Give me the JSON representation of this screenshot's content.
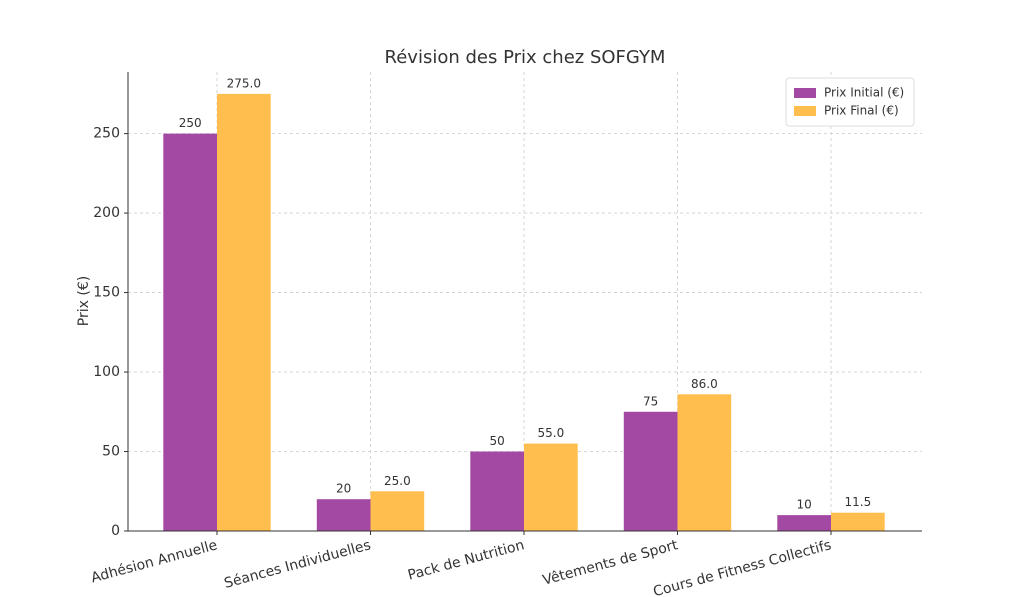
{
  "chart_data": {
    "type": "bar",
    "title": "Révision des Prix chez SOFGYM",
    "y_label": "Prix (€)",
    "categories": [
      "Adhésion Annuelle",
      "Séances Individuelles",
      "Pack de Nutrition",
      "Vêtements de Sport",
      "Cours de Fitness Collectifs"
    ],
    "series": [
      {
        "name": "Prix Initial (€)",
        "color": "#a349a4",
        "values": [
          250,
          20,
          50,
          75,
          10
        ]
      },
      {
        "name": "Prix Final (€)",
        "color": "#ffbe4d",
        "values": [
          275,
          25,
          55,
          86,
          11.5
        ],
        "value_labels": [
          "275.0",
          "25.0",
          "55.0",
          "86.0",
          "11.5"
        ]
      }
    ],
    "ylim": [
      0,
      288.75
    ],
    "yticks": [
      0,
      50,
      100,
      150,
      200,
      250
    ],
    "grid": true,
    "legend": "upper right"
  }
}
